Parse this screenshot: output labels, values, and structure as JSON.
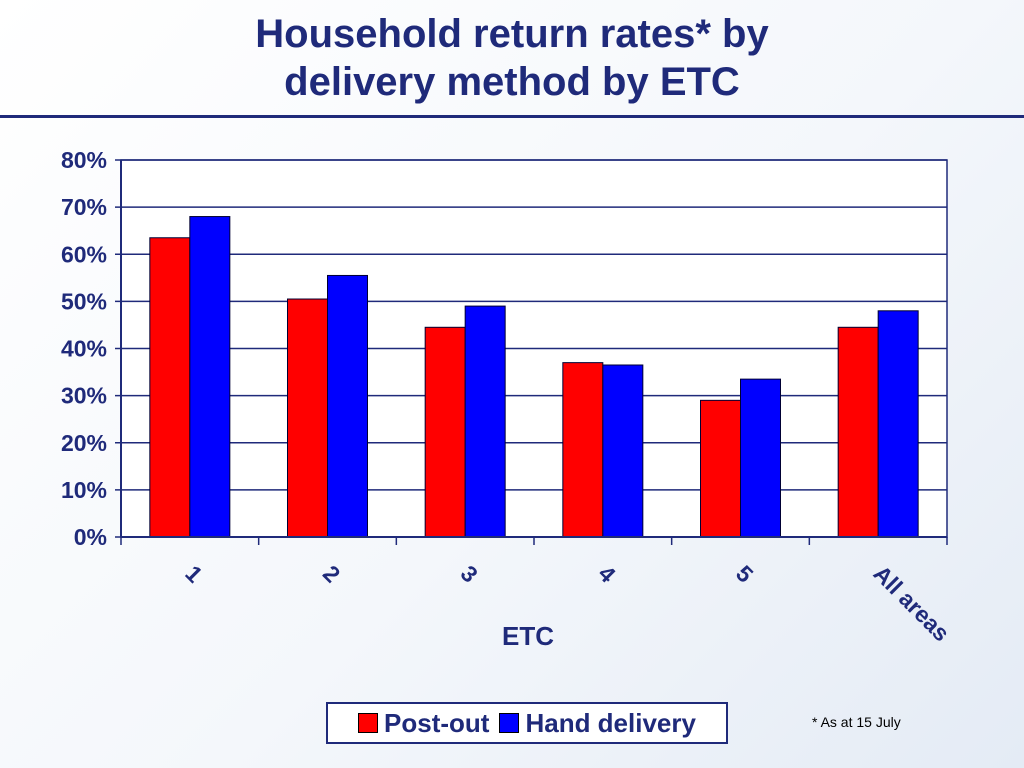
{
  "title_line1": "Household return rates* by",
  "title_line2": "delivery method by ETC",
  "footnote": "* As at 15 July",
  "colors": {
    "post_out": "#ff0000",
    "hand_delivery": "#0000ff",
    "text": "#1f2a7a"
  },
  "chart_data": {
    "type": "bar",
    "title": "Household return rates* by delivery method by ETC",
    "xlabel": "ETC",
    "ylabel": "",
    "categories": [
      "1",
      "2",
      "3",
      "4",
      "5",
      "All areas"
    ],
    "ylim": [
      0,
      80
    ],
    "yticks": [
      "0%",
      "10%",
      "20%",
      "30%",
      "40%",
      "50%",
      "60%",
      "70%",
      "80%"
    ],
    "series": [
      {
        "name": "Post-out",
        "values": [
          63.5,
          50.5,
          44.5,
          37,
          29,
          44.5
        ]
      },
      {
        "name": "Hand delivery",
        "values": [
          68,
          55.5,
          49,
          36.5,
          33.5,
          48
        ]
      }
    ],
    "grid": true,
    "legend": "bottom"
  }
}
